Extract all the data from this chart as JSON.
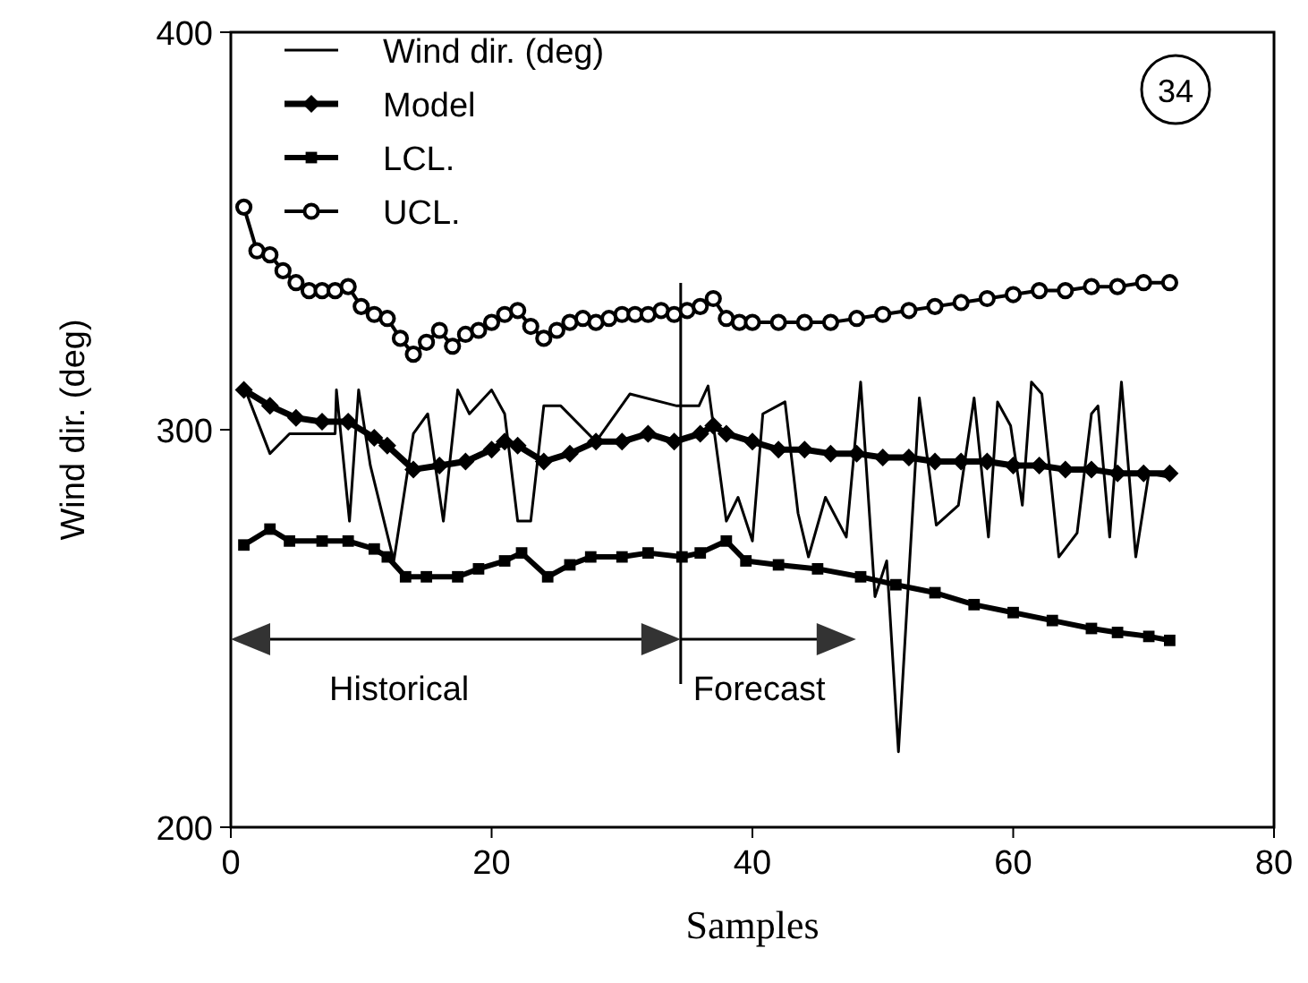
{
  "chart_data": {
    "type": "line",
    "xlabel": "Samples",
    "ylabel": "Wind dir. (deg)",
    "xlim": [
      0,
      80
    ],
    "xticks": [
      0,
      20,
      40,
      60,
      80
    ],
    "ylim": [
      200,
      400
    ],
    "yticks": [
      200,
      300,
      400
    ],
    "grid": false,
    "legend": "top left",
    "series": [
      {
        "name": "Wind dir. (deg)",
        "color": "#000000",
        "marker": "none",
        "x": [
          1,
          3,
          4.5,
          8,
          8.1,
          9.1,
          9.8,
          10.7,
          12.5,
          14,
          15.1,
          16.3,
          17.4,
          18.3,
          20,
          21,
          22,
          23,
          24,
          25.3,
          28,
          30.6,
          34.2,
          35.9,
          36.6,
          38,
          38.9,
          40,
          40.8,
          42.5,
          43.5,
          44.3,
          45.6,
          47.2,
          48.3,
          49.4,
          50.3,
          51.2,
          52.8,
          54.1,
          55.8,
          57,
          58.1,
          58.8,
          59.8,
          60.7,
          61.4,
          62.2,
          63.5,
          64.9,
          66,
          66.5,
          67.4,
          68.3,
          69.4,
          70.4,
          72
        ],
        "values": [
          311,
          294,
          299,
          299,
          310,
          277,
          310,
          291,
          267,
          299,
          304,
          277,
          310,
          304,
          310,
          304,
          277,
          277,
          306,
          306,
          297,
          309,
          306,
          306,
          311,
          277,
          283,
          272,
          304,
          307,
          279,
          268,
          283,
          273,
          312,
          258,
          267,
          219,
          308,
          276,
          281,
          308,
          273,
          307,
          301,
          281,
          312,
          309,
          268,
          274,
          304,
          306,
          273,
          312,
          268,
          289,
          288
        ]
      },
      {
        "name": "Model",
        "color": "#000000",
        "marker": "diamond",
        "x": [
          1,
          3,
          5,
          7,
          9,
          11,
          12,
          14,
          16,
          18,
          20,
          21,
          22,
          24,
          26,
          28,
          30,
          32,
          34,
          36,
          37,
          38,
          40,
          42,
          44,
          46,
          48,
          50,
          52,
          54,
          56,
          58,
          60,
          62,
          64,
          66,
          68,
          70,
          72
        ],
        "values": [
          310,
          306,
          303,
          302,
          302,
          298,
          296,
          290,
          291,
          292,
          295,
          297,
          296,
          292,
          294,
          297,
          297,
          299,
          297,
          299,
          301,
          299,
          297,
          295,
          295,
          294,
          294,
          293,
          293,
          292,
          292,
          292,
          291,
          291,
          290,
          290,
          289,
          289,
          289
        ]
      },
      {
        "name": "LCL.",
        "color": "#000000",
        "marker": "square",
        "x": [
          1,
          3,
          4.5,
          7,
          9,
          11,
          12,
          13.4,
          15,
          17.4,
          19,
          21,
          22.3,
          24.3,
          26,
          27.6,
          30,
          32,
          34.6,
          36,
          38,
          39.5,
          42,
          45,
          48.3,
          51,
          54,
          57,
          60,
          63,
          66,
          68,
          70.4,
          72
        ],
        "values": [
          271,
          275,
          272,
          272,
          272,
          270,
          268,
          263,
          263,
          263,
          265,
          267,
          269,
          263,
          266,
          268,
          268,
          269,
          268,
          269,
          272,
          267,
          266,
          265,
          263,
          261,
          259,
          256,
          254,
          252,
          250,
          249,
          248,
          247
        ]
      },
      {
        "name": "UCL.",
        "color": "#000000",
        "marker": "circle",
        "x": [
          1,
          2,
          3,
          4,
          5,
          6,
          7,
          8,
          9,
          10,
          11,
          12,
          13,
          14,
          15,
          16,
          17,
          18,
          19,
          20,
          21,
          22,
          23,
          24,
          25,
          26,
          27,
          28,
          29,
          30,
          31,
          32,
          33,
          34,
          35,
          36,
          37,
          38,
          39,
          40,
          42,
          44,
          46,
          48,
          50,
          52,
          54,
          56,
          58,
          60,
          62,
          64,
          66,
          68,
          70,
          72
        ],
        "values": [
          356,
          345,
          344,
          340,
          337,
          335,
          335,
          335,
          336,
          331,
          329,
          328,
          323,
          319,
          322,
          325,
          321,
          324,
          325,
          327,
          329,
          330,
          326,
          323,
          325,
          327,
          328,
          327,
          328,
          329,
          329,
          329,
          330,
          329,
          330,
          331,
          333,
          328,
          327,
          327,
          327,
          327,
          327,
          328,
          329,
          330,
          331,
          332,
          333,
          334,
          335,
          335,
          336,
          336,
          337,
          337
        ]
      }
    ],
    "ref_lines": [
      {
        "axis": "x",
        "value": 34.5,
        "color": "#000000"
      }
    ],
    "annotations": [
      "Historical",
      "Forecast",
      "34"
    ]
  }
}
